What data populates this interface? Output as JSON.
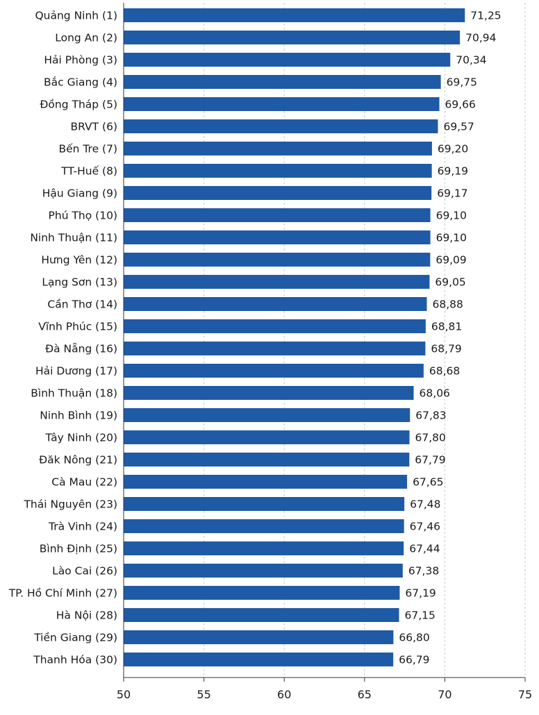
{
  "chart_data": {
    "type": "bar",
    "orientation": "horizontal",
    "title": "",
    "xlabel": "",
    "ylabel": "",
    "xlim": [
      50,
      75
    ],
    "x_ticks": [
      50,
      55,
      60,
      65,
      70,
      75
    ],
    "grid": true,
    "bar_color": "#1f5aa6",
    "categories": [
      "Quảng Ninh (1)",
      "Long An (2)",
      "Hải Phòng (3)",
      "Bắc Giang (4)",
      "Đồng Tháp (5)",
      "BRVT (6)",
      "Bến Tre (7)",
      "TT-Huế (8)",
      "Hậu Giang (9)",
      "Phú Thọ (10)",
      "Ninh Thuận (11)",
      "Hưng Yên (12)",
      "Lạng Sơn (13)",
      "Cần Thơ (14)",
      "Vĩnh Phúc (15)",
      "Đà Nẵng (16)",
      "Hải Dương (17)",
      "Bình Thuận (18)",
      "Ninh Bình (19)",
      "Tây Ninh (20)",
      "Đăk Nông (21)",
      "Cà Mau (22)",
      "Thái Nguyên (23)",
      "Trà Vinh (24)",
      "Bình Định (25)",
      "Lào Cai (26)",
      "TP. Hồ Chí Minh (27)",
      "Hà Nội (28)",
      "Tiền Giang (29)",
      "Thanh Hóa (30)"
    ],
    "values": [
      71.25,
      70.94,
      70.34,
      69.75,
      69.66,
      69.57,
      69.2,
      69.19,
      69.17,
      69.1,
      69.1,
      69.09,
      69.05,
      68.88,
      68.81,
      68.79,
      68.68,
      68.06,
      67.83,
      67.8,
      67.79,
      67.65,
      67.48,
      67.46,
      67.44,
      67.38,
      67.19,
      67.15,
      66.8,
      66.79
    ],
    "value_labels": [
      "71,25",
      "70,94",
      "70,34",
      "69,75",
      "69,66",
      "69,57",
      "69,20",
      "69,19",
      "69,17",
      "69,10",
      "69,10",
      "69,09",
      "69,05",
      "68,88",
      "68,81",
      "68,79",
      "68,68",
      "68,06",
      "67,83",
      "67,80",
      "67,79",
      "67,65",
      "67,48",
      "67,46",
      "67,44",
      "67,38",
      "67,19",
      "67,15",
      "66,80",
      "66,79"
    ]
  }
}
